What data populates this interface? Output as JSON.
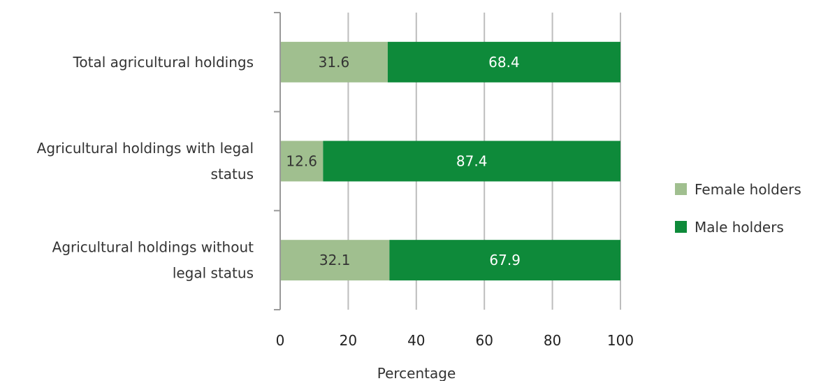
{
  "chart_data": {
    "type": "bar",
    "orientation": "horizontal",
    "stacked": true,
    "categories": [
      [
        "Total agricultural holdings"
      ],
      [
        "Agricultural holdings with legal",
        "status"
      ],
      [
        "Agricultural holdings without",
        "legal status"
      ]
    ],
    "series": [
      {
        "name": "Female holders",
        "values": [
          31.6,
          12.6,
          32.1
        ],
        "color": "#a0bf8f",
        "label_color": "#333333"
      },
      {
        "name": "Male holders",
        "values": [
          68.4,
          87.4,
          67.9
        ],
        "color": "#0e8a3a",
        "label_color": "#ffffff"
      }
    ],
    "xlabel": "Percentage",
    "xlim": [
      0,
      100
    ],
    "xticks": [
      0,
      20,
      40,
      60,
      80,
      100
    ],
    "grid": true,
    "legend_position": "right"
  }
}
